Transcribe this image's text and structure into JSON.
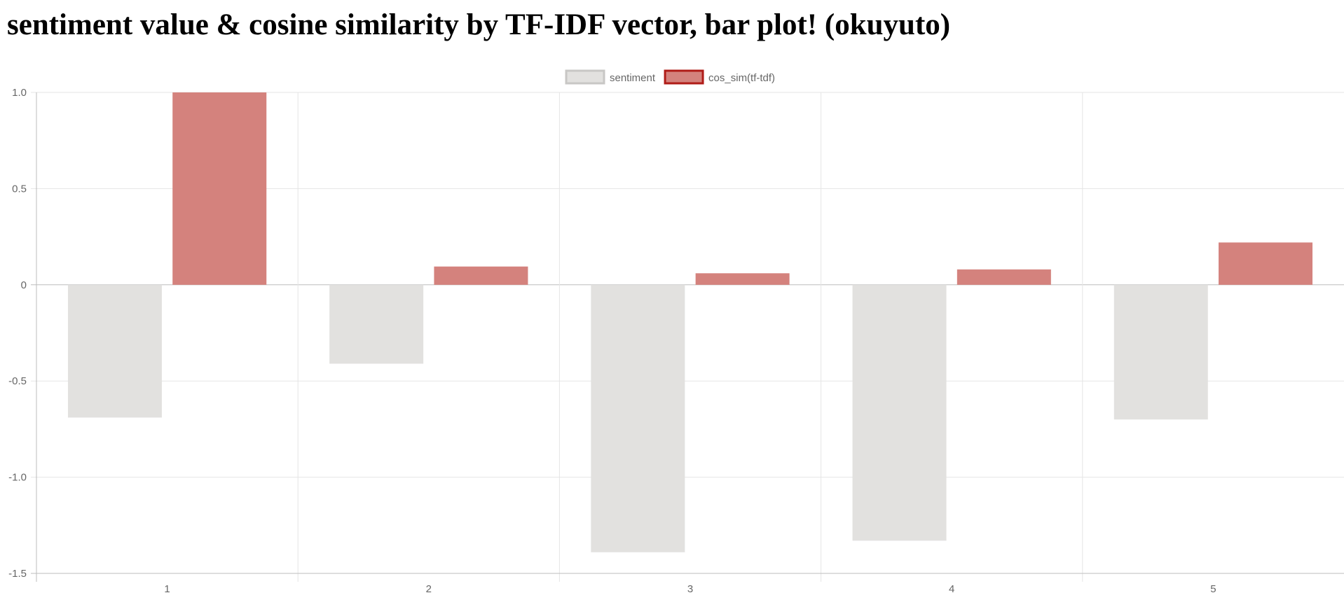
{
  "page": {
    "title": "sentiment value & cosine similarity by TF-IDF vector, bar plot! (okuyuto)"
  },
  "chart_data": {
    "type": "bar",
    "title": "",
    "xlabel": "",
    "ylabel": "",
    "categories": [
      "1",
      "2",
      "3",
      "4",
      "5"
    ],
    "ylim": [
      -1.5,
      1.0
    ],
    "yticks": [
      1.0,
      0.5,
      0,
      -0.5,
      -1.0,
      -1.5
    ],
    "ytick_labels": [
      "1.0",
      "0.5",
      "0",
      "-0.5",
      "-1.0",
      "-1.5"
    ],
    "grid": true,
    "legend_position": "top-center",
    "series": [
      {
        "name": "sentiment",
        "values": [
          -0.69,
          -0.41,
          -1.39,
          -1.33,
          -0.7
        ],
        "fill": "#e2e1df",
        "border": "#c8c7c5"
      },
      {
        "name": "cos_sim(tf-tdf)",
        "values": [
          1.0,
          0.095,
          0.06,
          0.08,
          0.22
        ],
        "fill": "#d4827d",
        "border": "#b01c18"
      }
    ]
  }
}
